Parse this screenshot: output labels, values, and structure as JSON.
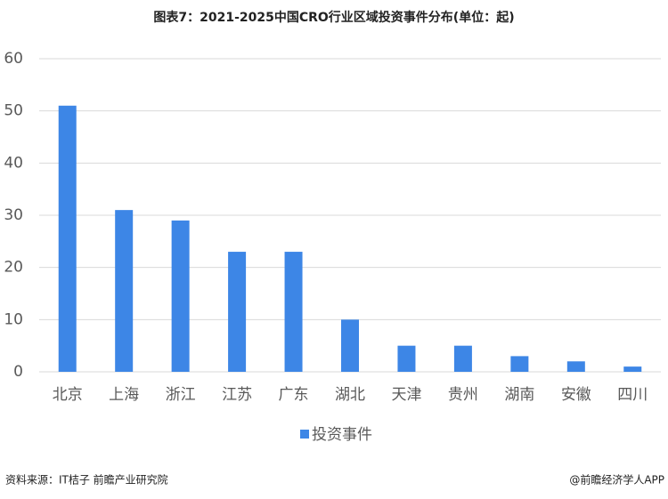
{
  "chart_data": {
    "type": "bar",
    "title": "图表7：2021-2025中国CRO行业区域投资事件分布(单位：起)",
    "categories": [
      "北京",
      "上海",
      "浙江",
      "江苏",
      "广东",
      "湖北",
      "天津",
      "贵州",
      "湖南",
      "安徽",
      "四川"
    ],
    "series": [
      {
        "name": "投资事件",
        "color": "#3d86e6",
        "values": [
          51,
          31,
          29,
          23,
          23,
          10,
          5,
          5,
          3,
          2,
          1
        ]
      }
    ],
    "ylim": [
      0,
      60
    ],
    "yticks": [
      0,
      10,
      20,
      30,
      40,
      50,
      60
    ],
    "grid": true,
    "legend": "bottom",
    "source": "资料来源：IT桔子 前瞻产业研究院",
    "credit": "@前瞻经济学人APP"
  }
}
